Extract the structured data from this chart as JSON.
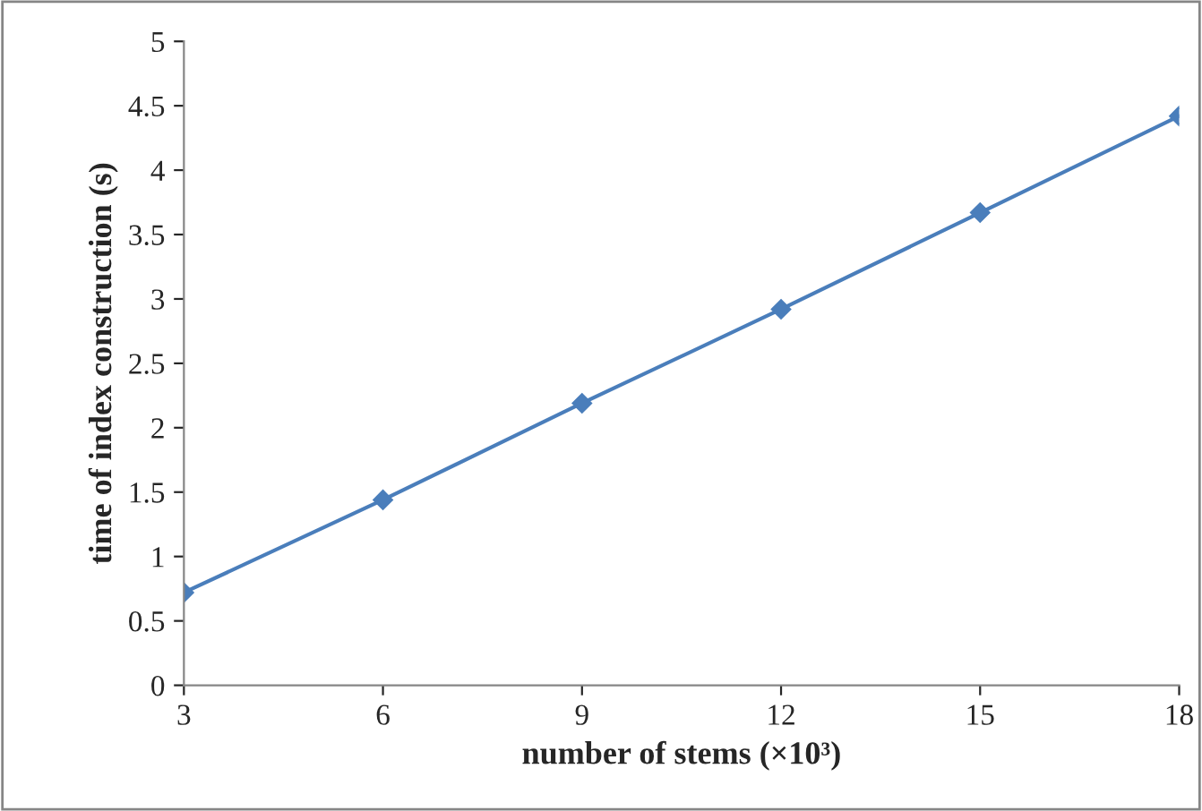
{
  "chart_data": {
    "type": "line",
    "xlabel": "number of stems (×10³)",
    "ylabel": "time of index construction (s)",
    "x": [
      3,
      6,
      9,
      12,
      15,
      18
    ],
    "series": [
      {
        "color": "#4a7ebb",
        "values": [
          0.72,
          1.44,
          2.19,
          2.92,
          3.67,
          4.42
        ]
      }
    ],
    "xlim": [
      3,
      18
    ],
    "xticks": [
      3,
      6,
      9,
      12,
      15,
      18
    ],
    "ylim": [
      0,
      5
    ],
    "yticks": [
      0,
      0.5,
      1,
      1.5,
      2,
      2.5,
      3,
      3.5,
      4,
      4.5,
      5
    ],
    "marker": "diamond",
    "line_style": "solid",
    "grid": false,
    "legend": false
  }
}
